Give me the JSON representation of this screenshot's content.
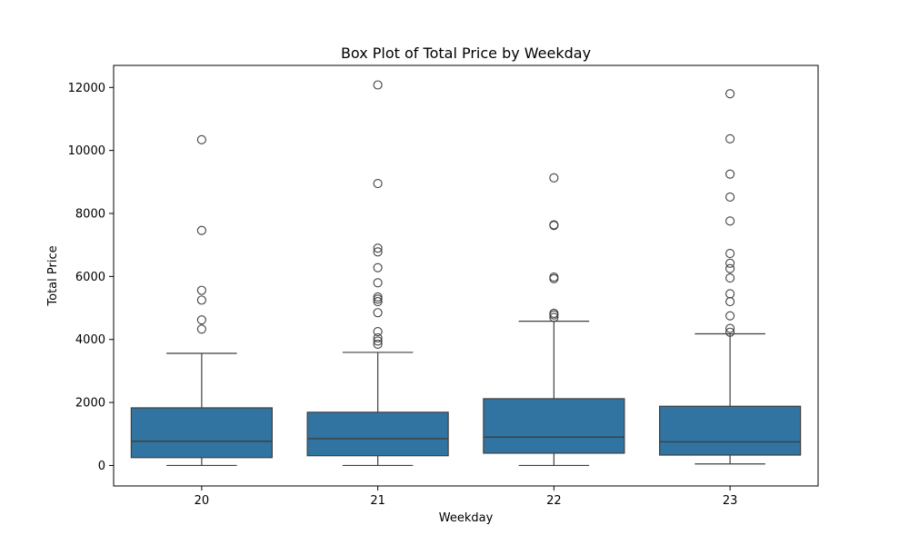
{
  "chart_data": {
    "type": "box",
    "title": "Box Plot of Total Price by Weekday",
    "xlabel": "Weekday",
    "ylabel": "Total Price",
    "categories": [
      "20",
      "21",
      "22",
      "23"
    ],
    "ylim": [
      -650,
      12700
    ],
    "yticks": [
      0,
      2000,
      4000,
      6000,
      8000,
      10000,
      12000
    ],
    "grid": false,
    "legend": "none",
    "box_color": "#3274a1",
    "line_color": "#3f3f3f",
    "series": [
      {
        "category": "20",
        "whisker_low": 0,
        "q1": 250,
        "median": 770,
        "q3": 1830,
        "whisker_high": 3560,
        "outliers": [
          4330,
          4620,
          5250,
          5560,
          7460,
          10340
        ]
      },
      {
        "category": "21",
        "whisker_low": 0,
        "q1": 310,
        "median": 850,
        "q3": 1690,
        "whisker_high": 3590,
        "outliers": [
          3850,
          3950,
          4050,
          4250,
          4850,
          5200,
          5280,
          5350,
          5800,
          6280,
          6780,
          6900,
          8950,
          12080
        ]
      },
      {
        "category": "22",
        "whisker_low": 0,
        "q1": 390,
        "median": 900,
        "q3": 2120,
        "whisker_high": 4580,
        "outliers": [
          4700,
          4780,
          4830,
          5930,
          5980,
          7620,
          7640,
          9130
        ]
      },
      {
        "category": "23",
        "whisker_low": 50,
        "q1": 330,
        "median": 750,
        "q3": 1880,
        "whisker_high": 4180,
        "outliers": [
          4230,
          4350,
          4750,
          5200,
          5450,
          5950,
          6250,
          6420,
          6730,
          7760,
          8520,
          9250,
          10370,
          11800
        ]
      }
    ]
  }
}
